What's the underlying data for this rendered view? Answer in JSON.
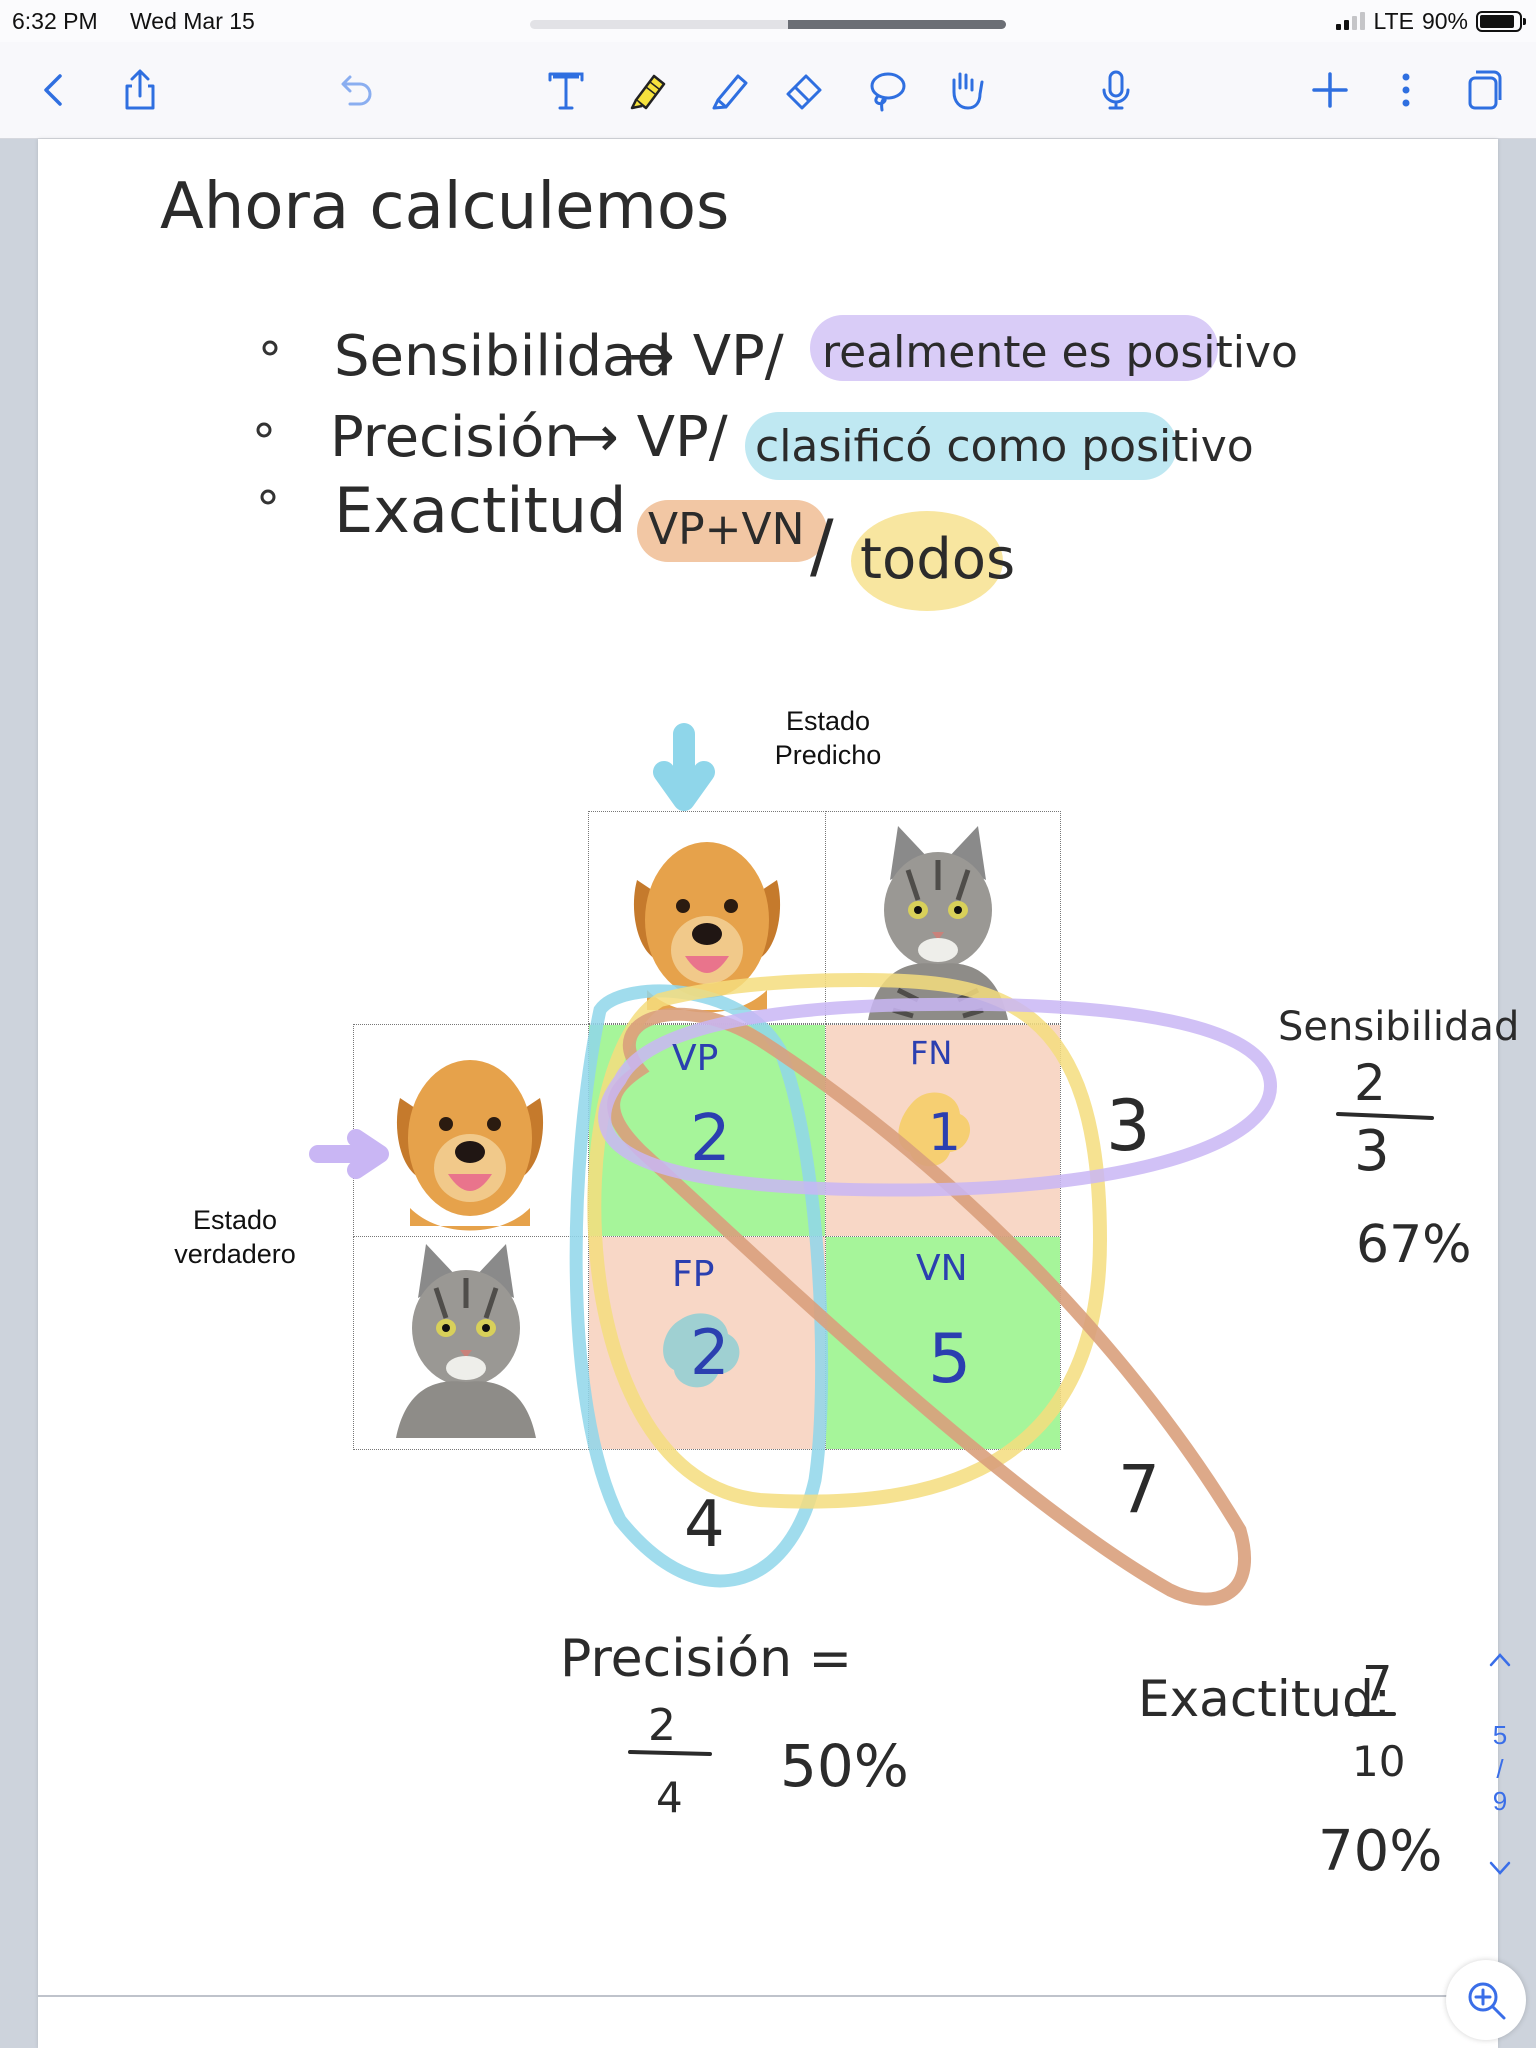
{
  "status_bar": {
    "time": "6:32 PM",
    "date": "Wed Mar 15",
    "network": "LTE",
    "battery": "90%",
    "battery_level": 0.9
  },
  "toolbar": {
    "icons": [
      "back-icon",
      "share-icon",
      "undo-icon",
      "text-tool-icon",
      "highlighter-icon",
      "pen-icon",
      "eraser-icon",
      "lasso-icon",
      "hand-icon",
      "microphone-icon",
      "add-icon",
      "more-icon",
      "pages-icon"
    ],
    "accent": "#2f6fe0"
  },
  "note": {
    "heading": "Ahora calculemos",
    "bullets": [
      {
        "term": "Sensibilidad",
        "formula": "→ VP/",
        "highlight": "realmente es positivo",
        "highlight_color": "#d9ccf7"
      },
      {
        "term": "Precisión",
        "formula": "→ VP/",
        "highlight": "clasificó como positivo",
        "highlight_color": "#bfe8f2"
      },
      {
        "term": "Exactitud",
        "formula_highlight": "VP+VN",
        "formula_color": "#f2c7a4",
        "separator": "/",
        "highlight": "todos",
        "highlight_color": "#f8e6a0"
      }
    ]
  },
  "matrix": {
    "predicted_label": "Estado\nPredicho",
    "true_label": "Estado\nverdadero",
    "cells": {
      "vp": {
        "tag": "VP",
        "value": "2",
        "color": "#a6f59a"
      },
      "fn": {
        "tag": "FN",
        "value": "1",
        "color": "#f8d7c6"
      },
      "fp": {
        "tag": "FP",
        "value": "2",
        "color": "#f8d7c6"
      },
      "vn": {
        "tag": "VN",
        "value": "5",
        "color": "#a6f59a"
      }
    },
    "row_total": "3",
    "col_total": "4",
    "diag_total": "7",
    "image_names": [
      "dog-photo",
      "cat-photo"
    ]
  },
  "results": {
    "sensibilidad": {
      "label": "Sensibilidad =",
      "num": "2",
      "den": "3",
      "pct": "67%"
    },
    "precision": {
      "label": "Precisión =",
      "num": "2",
      "den": "4",
      "pct": "50%"
    },
    "exactitud": {
      "label": "Exactitud:",
      "num": "7",
      "den": "10",
      "pct": "70%"
    }
  },
  "pager": {
    "current": "5",
    "sep": "/",
    "total": "9"
  }
}
